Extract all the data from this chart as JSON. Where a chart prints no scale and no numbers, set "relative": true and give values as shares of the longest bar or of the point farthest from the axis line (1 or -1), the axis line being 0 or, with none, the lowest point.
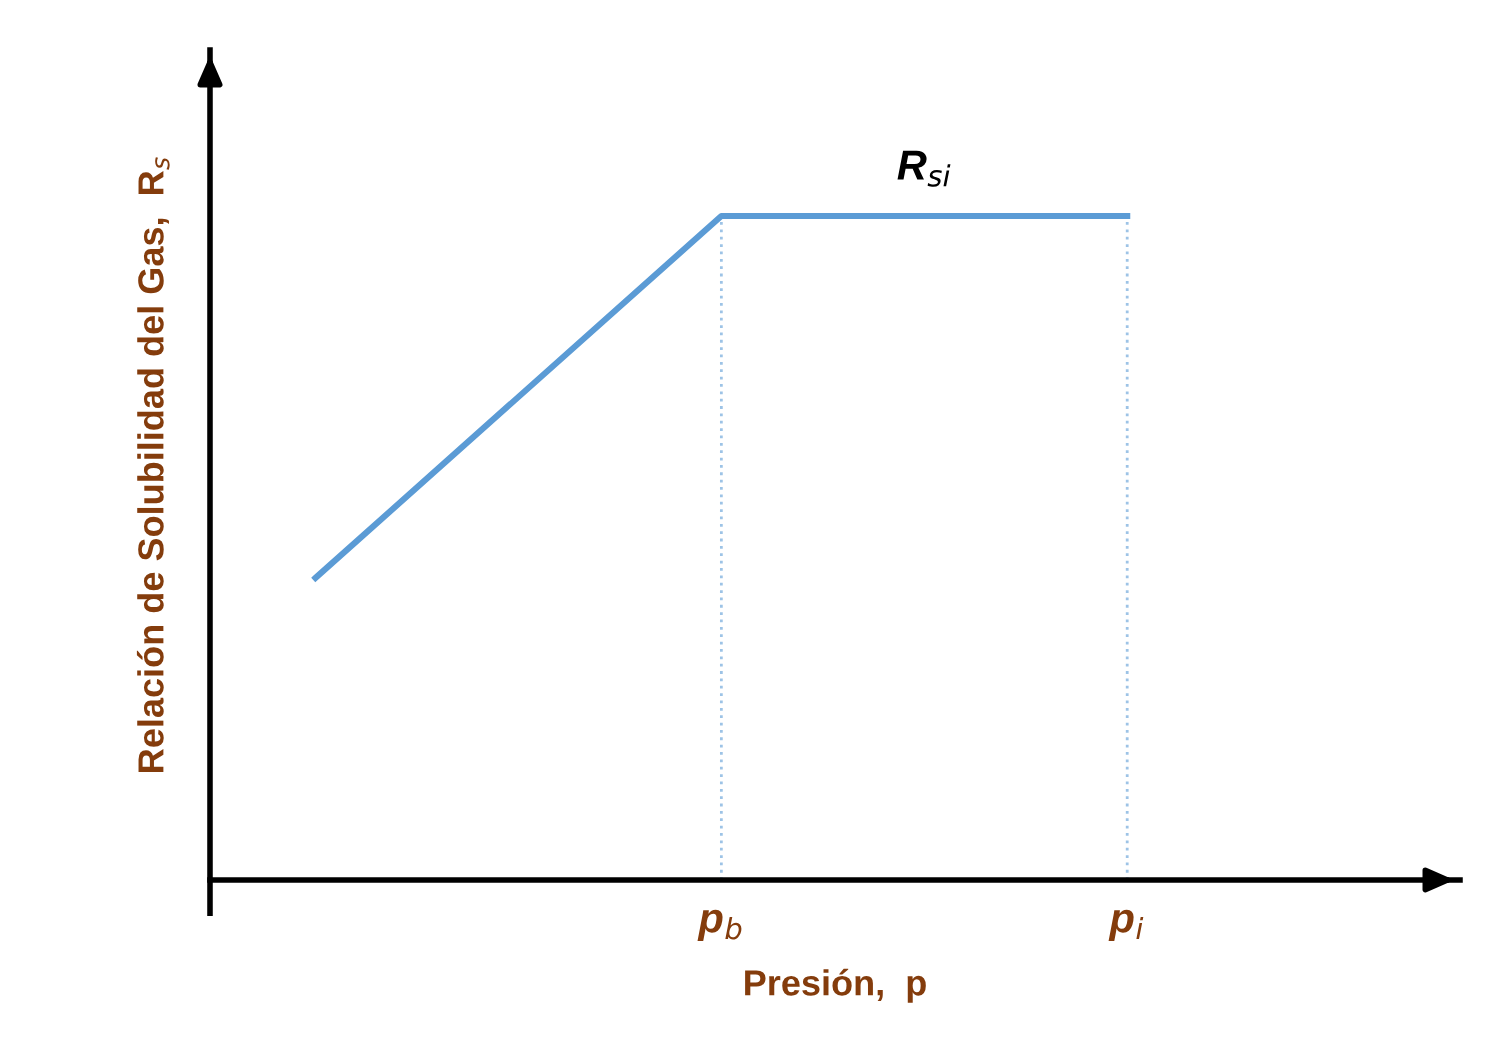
{
  "chart_data": {
    "type": "line",
    "relative": true,
    "xlabel": "Presión,  p",
    "ylabel": "Relación de Solubilidad del Gas,  R$_{s}$",
    "series": [
      {
        "color": "#5b9bd5",
        "values": [
          0.455,
          1.0,
          1.0
        ]
      }
    ],
    "categories": [
      null,
      "p$_{b}$",
      "p$_{i}$"
    ],
    "ref_lines": [
      {
        "axis": "x",
        "value": "p$_{b}$",
        "color": "#9dc3e6",
        "line_style": "dotted"
      },
      {
        "axis": "x",
        "value": "p$_{i}$",
        "color": "#9dc3e6",
        "line_style": "dotted"
      }
    ],
    "annotations": [
      "R$_{si}$"
    ],
    "grid": false,
    "legend": false,
    "marker": "none",
    "line_style": "solid"
  }
}
